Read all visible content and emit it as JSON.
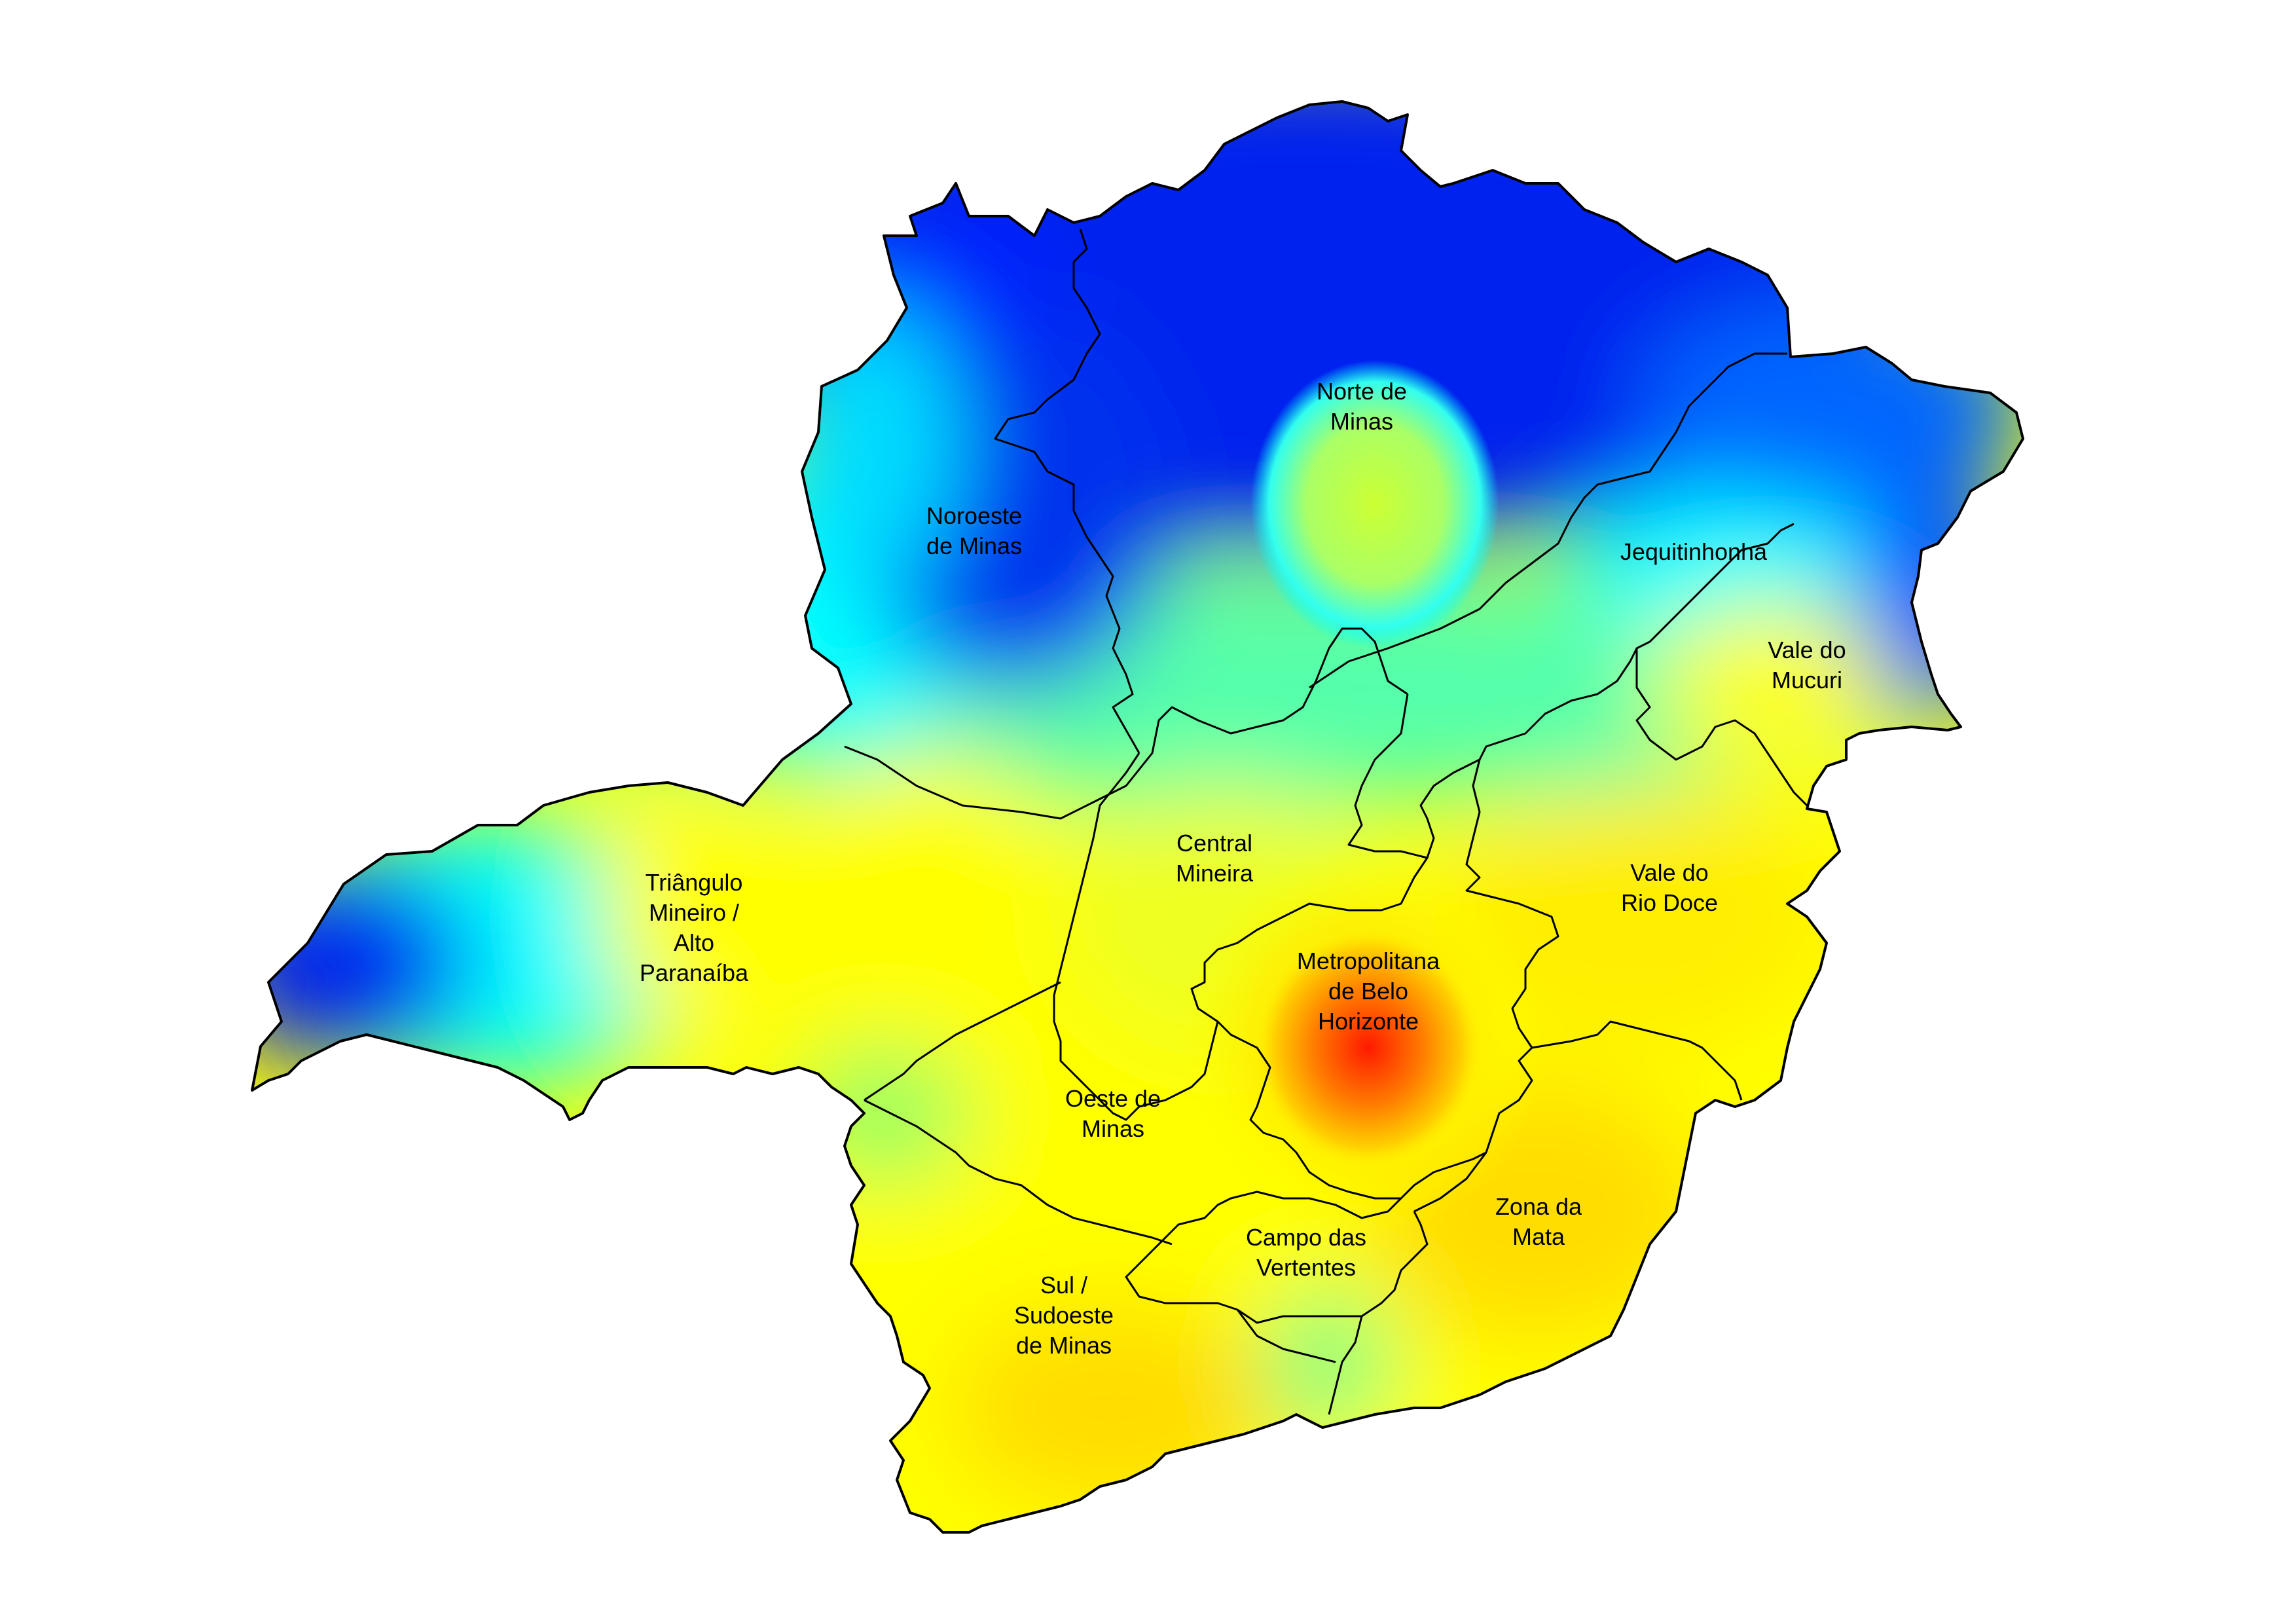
{
  "regions": [
    {
      "id": "norte-de-minas",
      "lines": [
        "Norte de",
        "Minas"
      ],
      "intensity": "low"
    },
    {
      "id": "noroeste-de-minas",
      "lines": [
        "Noroeste",
        "de Minas"
      ],
      "intensity": "low"
    },
    {
      "id": "jequitinhonha",
      "lines": [
        "Jequitinhonha"
      ],
      "intensity": "low"
    },
    {
      "id": "vale-do-mucuri",
      "lines": [
        "Vale do",
        "Mucuri"
      ],
      "intensity": "medium"
    },
    {
      "id": "triangulo-mineiro",
      "lines": [
        "Triângulo",
        "Mineiro /",
        "Alto",
        "Paranaíba"
      ],
      "intensity": "medium"
    },
    {
      "id": "central-mineira",
      "lines": [
        "Central",
        "Mineira"
      ],
      "intensity": "medium"
    },
    {
      "id": "vale-do-rio-doce",
      "lines": [
        "Vale do",
        "Rio Doce"
      ],
      "intensity": "medium"
    },
    {
      "id": "metropolitana-bh",
      "lines": [
        "Metropolitana",
        "de Belo",
        "Horizonte"
      ],
      "intensity": "high"
    },
    {
      "id": "oeste-de-minas",
      "lines": [
        "Oeste de",
        "Minas"
      ],
      "intensity": "medium"
    },
    {
      "id": "zona-da-mata",
      "lines": [
        "Zona da",
        "Mata"
      ],
      "intensity": "medium"
    },
    {
      "id": "campo-das-vertentes",
      "lines": [
        "Campo das",
        "Vertentes"
      ],
      "intensity": "medium"
    },
    {
      "id": "sul-sudoeste",
      "lines": [
        "Sul /",
        "Sudoeste",
        "de Minas"
      ],
      "intensity": "medium"
    }
  ],
  "colors": {
    "low": "#0033ff",
    "mid_low": "#00ffff",
    "medium": "#ffff00",
    "high": "#ff2200",
    "border": "#000000"
  }
}
